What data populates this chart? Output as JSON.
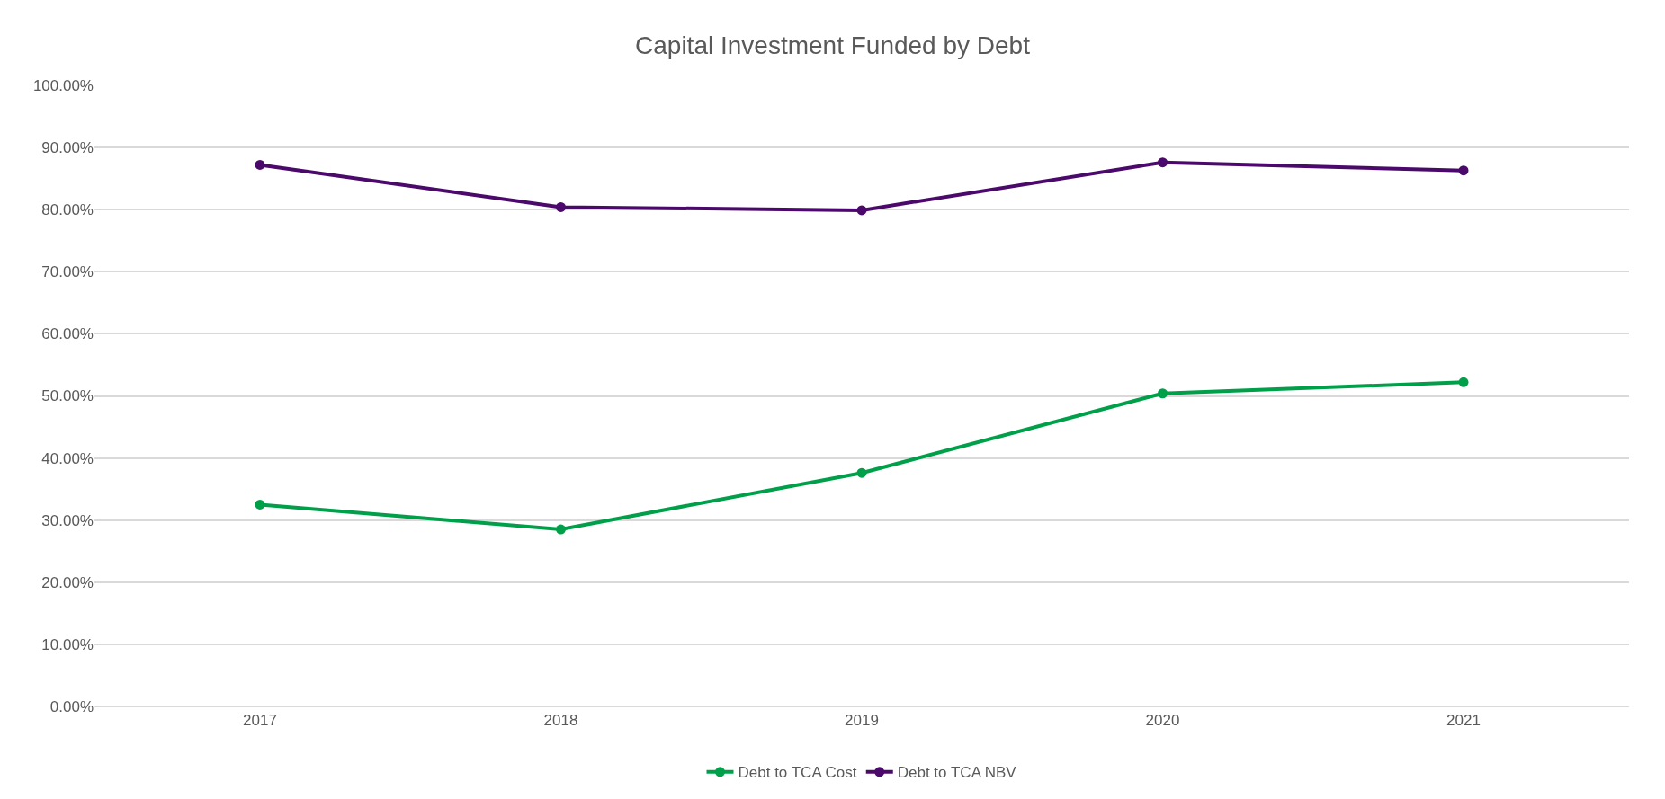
{
  "chart_data": {
    "type": "line",
    "title": "Capital Investment Funded by Debt",
    "categories": [
      "2017",
      "2018",
      "2019",
      "2020",
      "2021"
    ],
    "series": [
      {
        "name": "Debt to TCA Cost",
        "color": "#00a04a",
        "values": [
          32.5,
          28.5,
          37.6,
          50.4,
          52.2
        ]
      },
      {
        "name": "Debt to TCA NBV",
        "color": "#4b0a6b",
        "values": [
          87.2,
          80.4,
          79.9,
          87.6,
          86.3
        ]
      }
    ],
    "ylim": [
      0,
      100
    ],
    "yticks": [
      {
        "value": 0,
        "label": "0.00%"
      },
      {
        "value": 10,
        "label": "10.00%"
      },
      {
        "value": 20,
        "label": "20.00%"
      },
      {
        "value": 30,
        "label": "30.00%"
      },
      {
        "value": 40,
        "label": "40.00%"
      },
      {
        "value": 50,
        "label": "50.00%"
      },
      {
        "value": 60,
        "label": "60.00%"
      },
      {
        "value": 70,
        "label": "70.00%"
      },
      {
        "value": 80,
        "label": "80.00%"
      },
      {
        "value": 90,
        "label": "90.00%"
      },
      {
        "value": 100,
        "label": "100.00%"
      }
    ],
    "grid": "y",
    "legend": "bottom",
    "marker": "circle",
    "line_style": "solid"
  }
}
